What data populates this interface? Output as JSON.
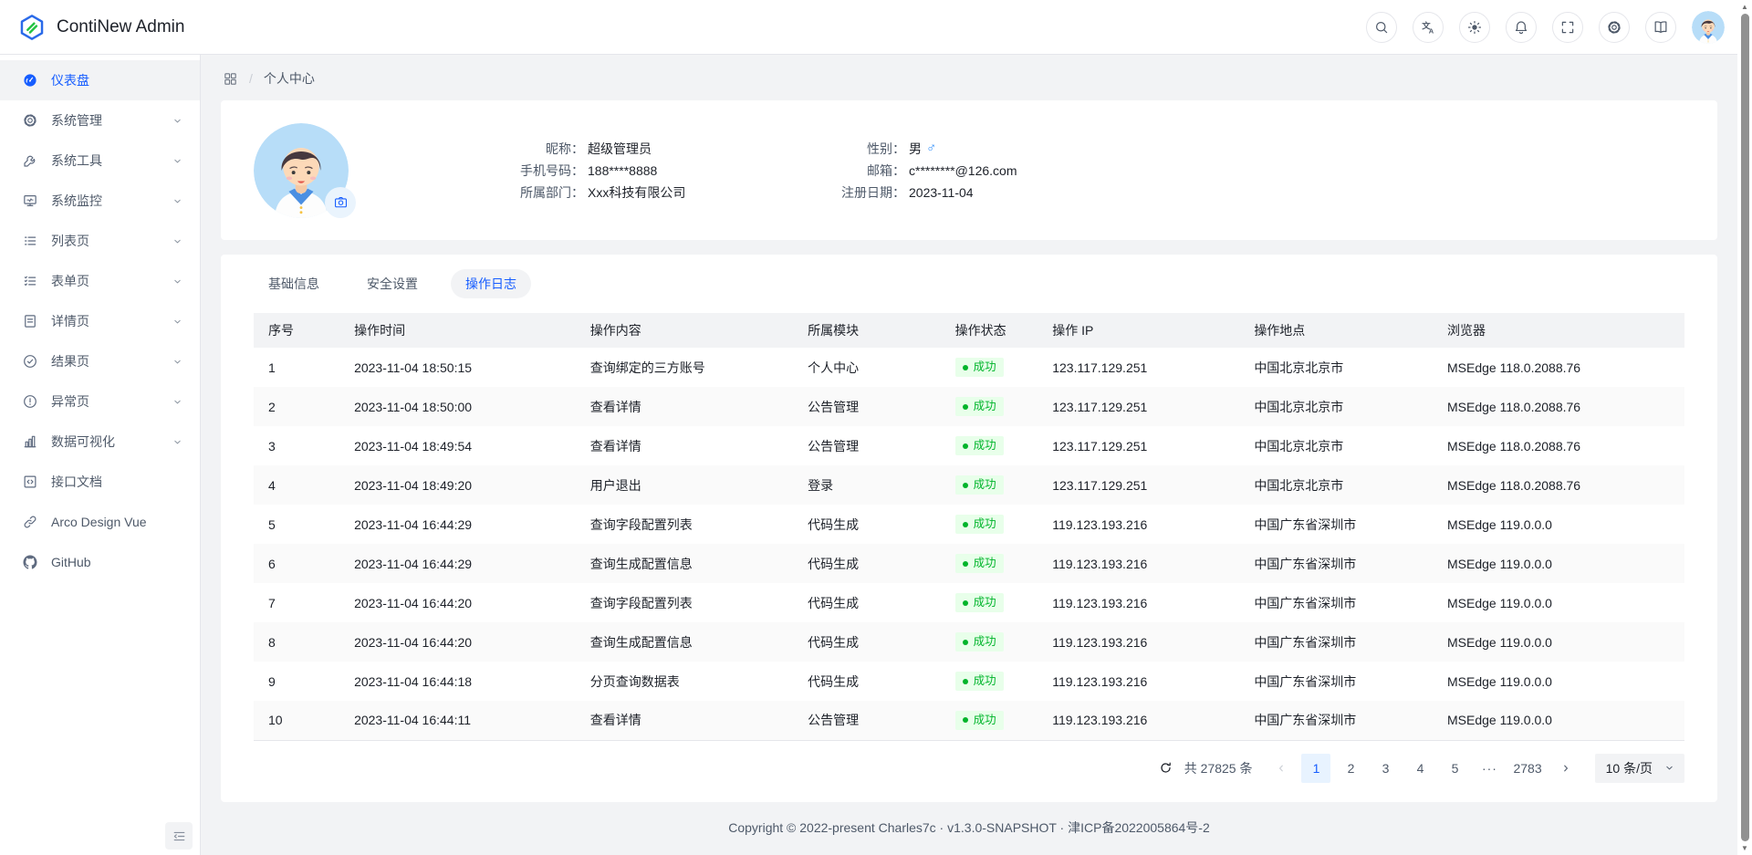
{
  "app": {
    "title": "ContiNew Admin"
  },
  "header": {
    "actions": [
      {
        "name": "search-button",
        "icon": "search-icon"
      },
      {
        "name": "language-button",
        "icon": "translate-icon"
      },
      {
        "name": "theme-toggle-button",
        "icon": "theme-icon"
      },
      {
        "name": "notifications-button",
        "icon": "notification-icon"
      },
      {
        "name": "fullscreen-button",
        "icon": "fullscreen-icon"
      },
      {
        "name": "settings-button",
        "icon": "settings-icon"
      },
      {
        "name": "docs-button",
        "icon": "docs-icon"
      },
      {
        "name": "user-avatar-button",
        "type": "avatar",
        "icon": "user-avatar"
      }
    ]
  },
  "sidebar": {
    "items": [
      {
        "label": "仪表盘",
        "icon": "dashboard-icon",
        "name": "sidebar-item-dashboard",
        "active": true,
        "chevron": false
      },
      {
        "label": "系统管理",
        "icon": "settings-icon",
        "name": "sidebar-item-system-management",
        "chevron": true
      },
      {
        "label": "系统工具",
        "icon": "tool-icon",
        "name": "sidebar-item-system-tools",
        "chevron": true
      },
      {
        "label": "系统监控",
        "icon": "monitor-icon",
        "name": "sidebar-item-system-monitor",
        "chevron": true
      },
      {
        "label": "列表页",
        "icon": "list-icon",
        "name": "sidebar-item-list-page",
        "chevron": true
      },
      {
        "label": "表单页",
        "icon": "form-icon",
        "name": "sidebar-item-form-page",
        "chevron": true
      },
      {
        "label": "详情页",
        "icon": "detail-icon",
        "name": "sidebar-item-detail-page",
        "chevron": true
      },
      {
        "label": "结果页",
        "icon": "result-icon",
        "name": "sidebar-item-result-page",
        "chevron": true
      },
      {
        "label": "异常页",
        "icon": "exception-icon",
        "name": "sidebar-item-exception-page",
        "chevron": true
      },
      {
        "label": "数据可视化",
        "icon": "chart-icon",
        "name": "sidebar-item-data-visualization",
        "chevron": true
      },
      {
        "label": "接口文档",
        "icon": "api-doc-icon",
        "name": "sidebar-item-api-docs",
        "chevron": false
      },
      {
        "label": "Arco Design Vue",
        "icon": "link-icon",
        "name": "sidebar-item-arco-design-vue",
        "chevron": false
      },
      {
        "label": "GitHub",
        "icon": "github-icon",
        "name": "sidebar-item-github",
        "chevron": false
      }
    ]
  },
  "breadcrumb": {
    "current": "个人中心"
  },
  "profile": {
    "fields_left": [
      {
        "label": "昵称：",
        "value": "超级管理员"
      },
      {
        "label": "手机号码：",
        "value": "188****8888"
      },
      {
        "label": "所属部门：",
        "value": "Xxx科技有限公司"
      }
    ],
    "fields_right": [
      {
        "label": "性别：",
        "value": "男",
        "gender": "male"
      },
      {
        "label": "邮箱：",
        "value": "c********@126.com"
      },
      {
        "label": "注册日期：",
        "value": "2023-11-04"
      }
    ]
  },
  "tabs": [
    {
      "label": "基础信息",
      "name": "tab-basic-info",
      "active": false
    },
    {
      "label": "安全设置",
      "name": "tab-security-settings",
      "active": false
    },
    {
      "label": "操作日志",
      "name": "tab-operation-log",
      "active": true
    }
  ],
  "table": {
    "columns": [
      "序号",
      "操作时间",
      "操作内容",
      "所属模块",
      "操作状态",
      "操作 IP",
      "操作地点",
      "浏览器"
    ],
    "rows": [
      {
        "no": "1",
        "time": "2023-11-04 18:50:15",
        "content": "查询绑定的三方账号",
        "module": "个人中心",
        "status": "成功",
        "ip": "123.117.129.251",
        "location": "中国北京北京市",
        "browser": "MSEdge 118.0.2088.76"
      },
      {
        "no": "2",
        "time": "2023-11-04 18:50:00",
        "content": "查看详情",
        "module": "公告管理",
        "status": "成功",
        "ip": "123.117.129.251",
        "location": "中国北京北京市",
        "browser": "MSEdge 118.0.2088.76"
      },
      {
        "no": "3",
        "time": "2023-11-04 18:49:54",
        "content": "查看详情",
        "module": "公告管理",
        "status": "成功",
        "ip": "123.117.129.251",
        "location": "中国北京北京市",
        "browser": "MSEdge 118.0.2088.76"
      },
      {
        "no": "4",
        "time": "2023-11-04 18:49:20",
        "content": "用户退出",
        "module": "登录",
        "status": "成功",
        "ip": "123.117.129.251",
        "location": "中国北京北京市",
        "browser": "MSEdge 118.0.2088.76"
      },
      {
        "no": "5",
        "time": "2023-11-04 16:44:29",
        "content": "查询字段配置列表",
        "module": "代码生成",
        "status": "成功",
        "ip": "119.123.193.216",
        "location": "中国广东省深圳市",
        "browser": "MSEdge 119.0.0.0"
      },
      {
        "no": "6",
        "time": "2023-11-04 16:44:29",
        "content": "查询生成配置信息",
        "module": "代码生成",
        "status": "成功",
        "ip": "119.123.193.216",
        "location": "中国广东省深圳市",
        "browser": "MSEdge 119.0.0.0"
      },
      {
        "no": "7",
        "time": "2023-11-04 16:44:20",
        "content": "查询字段配置列表",
        "module": "代码生成",
        "status": "成功",
        "ip": "119.123.193.216",
        "location": "中国广东省深圳市",
        "browser": "MSEdge 119.0.0.0"
      },
      {
        "no": "8",
        "time": "2023-11-04 16:44:20",
        "content": "查询生成配置信息",
        "module": "代码生成",
        "status": "成功",
        "ip": "119.123.193.216",
        "location": "中国广东省深圳市",
        "browser": "MSEdge 119.0.0.0"
      },
      {
        "no": "9",
        "time": "2023-11-04 16:44:18",
        "content": "分页查询数据表",
        "module": "代码生成",
        "status": "成功",
        "ip": "119.123.193.216",
        "location": "中国广东省深圳市",
        "browser": "MSEdge 119.0.0.0"
      },
      {
        "no": "10",
        "time": "2023-11-04 16:44:11",
        "content": "查看详情",
        "module": "公告管理",
        "status": "成功",
        "ip": "119.123.193.216",
        "location": "中国广东省深圳市",
        "browser": "MSEdge 119.0.0.0"
      }
    ]
  },
  "pagination": {
    "total_text": "共 27825 条",
    "pages": [
      "1",
      "2",
      "3",
      "4",
      "5",
      "···",
      "2783"
    ],
    "active_page": "1",
    "page_size_label": "10 条/页"
  },
  "footer": {
    "copyright": "Copyright © 2022-present Charles7c · v1.3.0-SNAPSHOT · 津ICP备2022005864号-2"
  },
  "colors": {
    "primary": "#165dff",
    "success": "#00b42a",
    "success_bg": "#e8ffea",
    "active_page_bg": "#e8f3ff",
    "sidebar_active_bg": "#f2f3f5"
  }
}
